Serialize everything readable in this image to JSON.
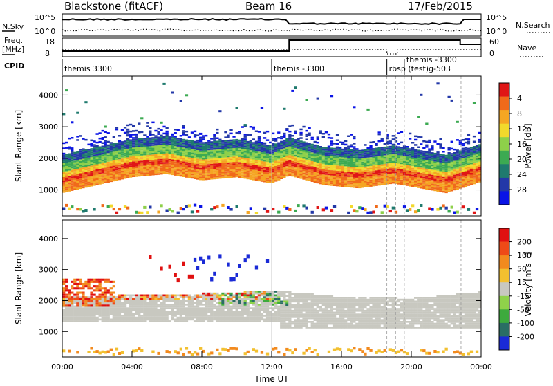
{
  "header": {
    "station": "Blackstone (fitACF)",
    "beam": "Beam 16",
    "date": "17/Feb/2015"
  },
  "left_labels": {
    "nsky": "N.Sky",
    "freq": "Freq.",
    "freq_unit": "[MHz]",
    "cpid": "CPID"
  },
  "right_labels": {
    "nsearch": "N.Search",
    "nave": "Nave"
  },
  "panel_ticks": {
    "noise_left": [
      "10^5",
      "10^0"
    ],
    "noise_right": [
      "10^5",
      "10^0"
    ],
    "freq_left": [
      "18",
      "8"
    ],
    "freq_right": [
      "60",
      "0"
    ]
  },
  "cpid_segments": [
    {
      "label": "themis 3300",
      "start_hr": 0
    },
    {
      "label": "themis -3300",
      "start_hr": 12.0
    },
    {
      "label": "rbsp (test)g-503",
      "start_hr": 18.6
    },
    {
      "label": "themis -3300",
      "start_hr": 19.6
    }
  ],
  "marker_hours": [
    18.6,
    19.1,
    19.6,
    22.85
  ],
  "chart_data": [
    {
      "type": "heatmap",
      "name": "power",
      "ylabel": "Slant Range [km]",
      "xlabel": "",
      "ylim": [
        180,
        4600
      ],
      "xlim": [
        0,
        24
      ],
      "yticks": [
        "1000",
        "2000",
        "3000",
        "4000"
      ],
      "colorbar": {
        "label": "Power [dB]",
        "ticks": [
          "4",
          "8",
          "12",
          "16",
          "20",
          "24",
          "28"
        ],
        "colors": [
          "#0a14e6",
          "#2338a8",
          "#1f7a6e",
          "#3caa52",
          "#8ed04a",
          "#f2d92c",
          "#f5a623",
          "#f06a1a",
          "#e01616"
        ]
      },
      "main_band": [
        {
          "x": 0,
          "y": 1200
        },
        {
          "x": 2,
          "y": 1450
        },
        {
          "x": 4,
          "y": 1700
        },
        {
          "x": 6,
          "y": 1800
        },
        {
          "x": 8,
          "y": 1600
        },
        {
          "x": 10,
          "y": 1700
        },
        {
          "x": 12,
          "y": 1500
        },
        {
          "x": 13,
          "y": 1750
        },
        {
          "x": 15,
          "y": 1450
        },
        {
          "x": 17,
          "y": 1350
        },
        {
          "x": 19,
          "y": 1500
        },
        {
          "x": 21,
          "y": 1300
        },
        {
          "x": 22,
          "y": 1200
        },
        {
          "x": 24,
          "y": 1550
        }
      ]
    },
    {
      "type": "heatmap",
      "name": "velocity",
      "ylabel": "Slant Range [km]",
      "xlabel": "Time UT",
      "ylim": [
        180,
        4600
      ],
      "xlim": [
        0,
        24
      ],
      "yticks": [
        "1000",
        "2000",
        "3000",
        "4000"
      ],
      "xticks": [
        "00:00",
        "04:00",
        "08:00",
        "12:00",
        "16:00",
        "20:00",
        "00:00"
      ],
      "colorbar": {
        "label": "Velocity [m s⁻¹]",
        "ticks": [
          "200",
          "100",
          "50",
          "15",
          "-15",
          "-50",
          "-100",
          "-200"
        ],
        "colors": [
          "#1a2ad6",
          "#2a6e64",
          "#3daa3d",
          "#8fd24a",
          "#c8c8c0",
          "#f2c030",
          "#f28a1e",
          "#ee4a18",
          "#e01010"
        ]
      },
      "ground_band": [
        {
          "x": 0,
          "y": 1600
        },
        {
          "x": 4,
          "y": 1650
        },
        {
          "x": 8,
          "y": 1700
        },
        {
          "x": 12,
          "y": 1800
        },
        {
          "x": 16,
          "y": 1600
        },
        {
          "x": 20,
          "y": 1550
        },
        {
          "x": 24,
          "y": 1750
        }
      ]
    }
  ]
}
